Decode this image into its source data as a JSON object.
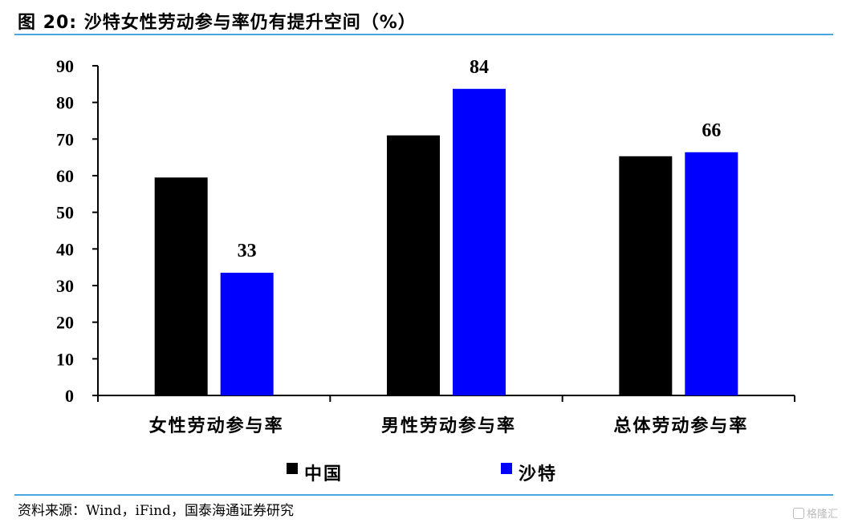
{
  "figure": {
    "title": "图 20:  沙特女性劳动参与率仍有提升空间（%）",
    "source": "资料来源：Wind，iFind，国泰海通证券研究",
    "watermark": "格隆汇"
  },
  "chart_data": {
    "type": "bar",
    "categories": [
      "女性劳动参与率",
      "男性劳动参与率",
      "总体劳动参与率"
    ],
    "series": [
      {
        "name": "中国",
        "values": [
          59.5,
          71,
          65.3
        ],
        "color": "#000000",
        "labels": [
          null,
          null,
          null
        ]
      },
      {
        "name": "沙特",
        "values": [
          33.5,
          83.7,
          66.4
        ],
        "color": "#0000ff",
        "labels": [
          "33",
          "84",
          "66"
        ]
      }
    ],
    "ylim": [
      0,
      90
    ],
    "yticks": [
      0,
      10,
      20,
      30,
      40,
      50,
      60,
      70,
      80,
      90
    ],
    "grid": false,
    "legend": "bottom-center"
  }
}
